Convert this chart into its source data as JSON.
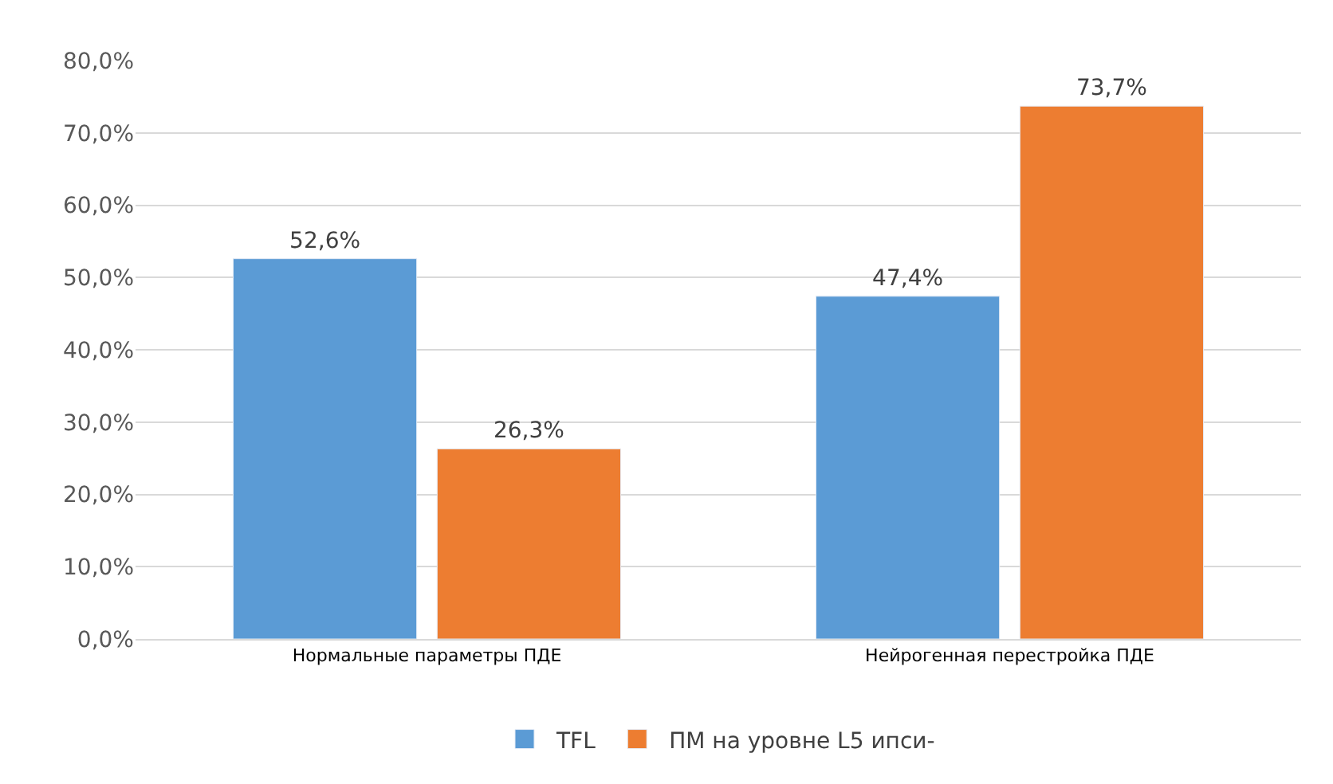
{
  "chart_data": {
    "type": "bar",
    "categories": [
      "Нормальные параметры ПДЕ",
      "Нейрогенная перестройка ПДЕ"
    ],
    "series": [
      {
        "name": "TFL",
        "color": "#5b9bd5",
        "values": [
          52.6,
          47.4
        ],
        "value_labels": [
          "52,6%",
          "47,4%"
        ]
      },
      {
        "name": "ПМ на уровне L5 ипси-",
        "color": "#ed7d31",
        "values": [
          26.3,
          73.7
        ],
        "value_labels": [
          "26,3%",
          "73,7%"
        ]
      }
    ],
    "ylim": [
      0,
      80
    ],
    "yticks": [
      {
        "value": 0,
        "label": "0,0%"
      },
      {
        "value": 10,
        "label": "10,0%"
      },
      {
        "value": 20,
        "label": "20,0%"
      },
      {
        "value": 30,
        "label": "30,0%"
      },
      {
        "value": 40,
        "label": "40,0%"
      },
      {
        "value": 50,
        "label": "50,0%"
      },
      {
        "value": 60,
        "label": "60,0%"
      },
      {
        "value": 70,
        "label": "70,0%"
      },
      {
        "value": 80,
        "label": "80,0%"
      }
    ],
    "grid": "y",
    "legend": "bottom"
  }
}
